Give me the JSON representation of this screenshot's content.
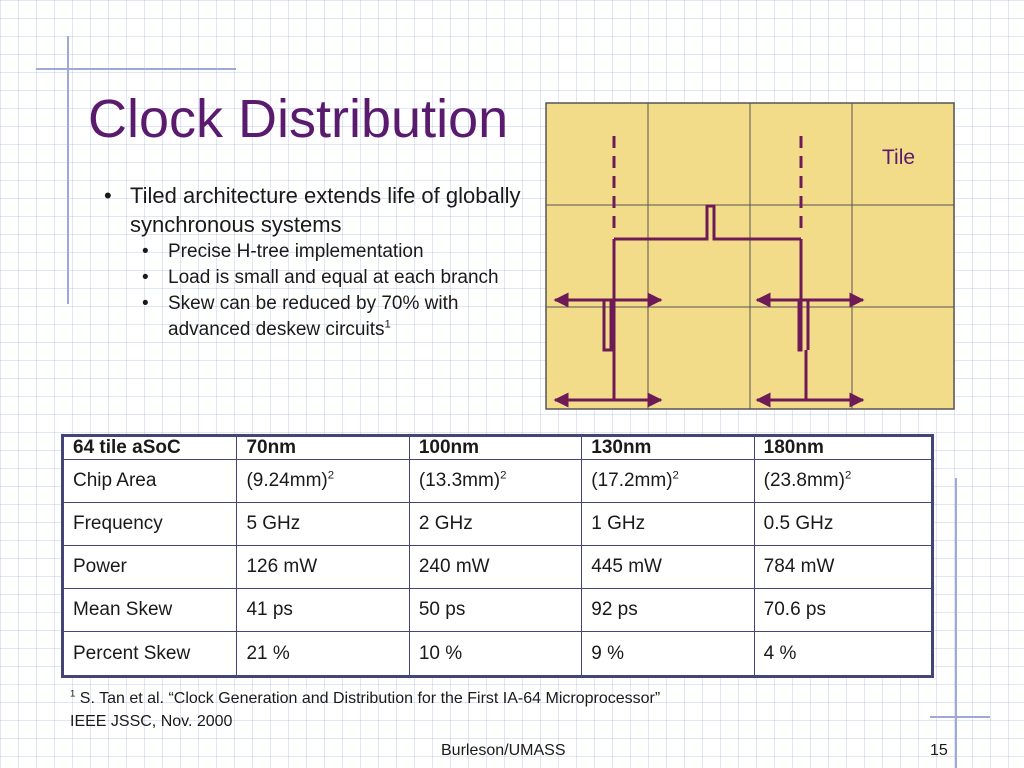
{
  "slide": {
    "title": "Clock Distribution",
    "bullets": [
      {
        "text": "Tiled architecture extends life of globally synchronous systems"
      }
    ],
    "sub_bullets": [
      {
        "text": "Precise H-tree implementation"
      },
      {
        "text": "Load is small and equal at each branch"
      },
      {
        "text": "Skew can be reduced by 70% with advanced deskew circuits",
        "sup": "1"
      }
    ]
  },
  "diagram": {
    "tile_label": "Tile",
    "grid": {
      "rows": 3,
      "cols": 4
    },
    "colors": {
      "tile_fill": "#f2dc8a",
      "tile_border": "#555555",
      "wire": "#6e1a56"
    }
  },
  "table": {
    "headers": [
      "64 tile aSoC",
      "70nm",
      "100nm",
      "130nm",
      "180nm"
    ],
    "rows": [
      {
        "label": "Chip Area",
        "cells": [
          {
            "base": "(9.24mm)",
            "sup": "2"
          },
          {
            "base": "(13.3mm)",
            "sup": "2"
          },
          {
            "base": "(17.2mm)",
            "sup": "2"
          },
          {
            "base": "(23.8mm)",
            "sup": "2"
          }
        ]
      },
      {
        "label": "Frequency",
        "cells": [
          {
            "base": "5 GHz"
          },
          {
            "base": "2 GHz"
          },
          {
            "base": "1 GHz"
          },
          {
            "base": "0.5 GHz"
          }
        ]
      },
      {
        "label": "Power",
        "cells": [
          {
            "base": "126 mW"
          },
          {
            "base": "240 mW"
          },
          {
            "base": "445 mW"
          },
          {
            "base": "784 mW"
          }
        ]
      },
      {
        "label": "Mean Skew",
        "cells": [
          {
            "base": "41 ps"
          },
          {
            "base": "50 ps"
          },
          {
            "base": "92 ps"
          },
          {
            "base": "70.6 ps"
          }
        ]
      },
      {
        "label": "Percent Skew",
        "cells": [
          {
            "base": "21 %"
          },
          {
            "base": "10 %"
          },
          {
            "base": "9 %"
          },
          {
            "base": "4 %"
          }
        ]
      }
    ]
  },
  "footnote": {
    "marker": "1",
    "line1": "S. Tan et al. “Clock Generation and Distribution for the First IA-64 Microprocessor”",
    "line2": "IEEE JSSC, Nov. 2000"
  },
  "footer": {
    "author": "Burleson/UMASS",
    "page": "15"
  }
}
